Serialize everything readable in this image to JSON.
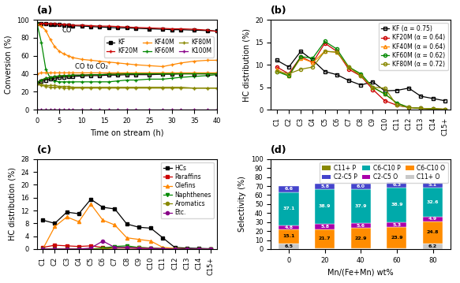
{
  "chart_data": [
    {
      "type": "line",
      "title": "(a)",
      "x_label": "Time on stream (h)",
      "y_label": "Conversion (%)",
      "x": [
        0,
        1,
        2,
        3,
        4,
        5,
        6,
        7,
        8,
        10,
        12,
        14,
        16,
        18,
        20,
        22,
        25,
        28,
        30,
        32,
        35,
        38,
        40
      ],
      "xlim": [
        0,
        40
      ],
      "xticks": [
        0,
        5,
        10,
        15,
        20,
        25,
        30,
        35,
        40
      ],
      "ylim": [
        0,
        100
      ],
      "yticks": [
        0,
        20,
        40,
        60,
        80,
        100
      ],
      "grid": false,
      "legend": "right",
      "annotations": [
        {
          "text": "CO",
          "x": 5.5,
          "y": 92
        },
        {
          "text": "CO to CO₂",
          "x": 8.5,
          "y": 44
        }
      ],
      "series": [
        {
          "name": "KF",
          "color": "#000000",
          "marker": "square",
          "values": [
            96,
            96,
            95.5,
            95,
            95,
            94.5,
            94,
            94,
            93.5,
            93,
            92.5,
            92,
            91.5,
            91,
            91,
            90.5,
            90,
            89.5,
            89,
            89,
            88.5,
            88,
            87.5
          ]
        },
        {
          "name": "KF20M",
          "color": "#cc0000",
          "marker": "plus",
          "values": [
            96,
            96,
            96,
            95.5,
            95.5,
            95,
            95,
            94.5,
            94,
            94,
            93.5,
            93,
            93,
            92.5,
            92,
            91.5,
            91,
            90.5,
            90,
            90,
            89.5,
            88.5,
            87
          ]
        },
        {
          "name": "KF40M",
          "color": "#ff8800",
          "marker": "plus",
          "values": [
            95,
            93,
            88,
            78,
            70,
            65,
            62,
            60,
            58,
            56,
            55,
            54,
            53,
            52,
            51,
            50,
            49,
            48,
            50,
            52,
            54,
            55,
            55
          ]
        },
        {
          "name": "KF60M",
          "color": "#008800",
          "marker": "plus",
          "values": [
            97,
            75,
            45,
            35,
            32,
            31,
            31,
            31,
            31,
            31,
            31,
            31,
            31,
            32,
            33,
            33,
            34,
            34,
            35,
            36,
            37,
            38,
            39
          ]
        },
        {
          "name": "KF80M",
          "color": "#888800",
          "marker": "plus",
          "values": [
            29,
            27,
            26,
            25,
            25,
            25,
            24,
            24,
            24,
            24,
            24,
            24,
            24,
            24,
            24,
            24,
            24,
            24,
            24,
            24,
            24,
            24,
            24
          ]
        },
        {
          "name": "K100M",
          "color": "#880088",
          "marker": "plus",
          "values": [
            0,
            0,
            0,
            0,
            0,
            0,
            0,
            0,
            0,
            0,
            0,
            0,
            0,
            0,
            0,
            0,
            0,
            0,
            0,
            0,
            0,
            0,
            0
          ]
        },
        {
          "name": "KF",
          "color": "#000000",
          "marker": "open_square",
          "values": [
            30,
            32,
            33,
            34,
            35,
            36,
            36.5,
            37,
            37,
            37.5,
            38,
            38,
            38.5,
            38.5,
            39,
            39,
            39,
            39.5,
            39.5,
            40,
            40,
            40,
            40
          ]
        },
        {
          "name": "KF20M",
          "color": "#cc0000",
          "marker": "plus",
          "values": [
            30,
            33,
            35,
            36,
            37,
            37.5,
            38,
            38,
            38.5,
            38.5,
            39,
            39,
            39.5,
            39.5,
            40,
            40,
            40,
            40,
            40,
            40,
            40,
            40,
            40
          ]
        },
        {
          "name": "KF40M",
          "color": "#ff8800",
          "marker": "plus",
          "values": [
            40,
            41,
            41,
            41,
            41,
            41,
            41,
            41,
            41,
            41,
            41,
            41,
            41,
            41,
            41,
            41,
            41,
            41,
            41,
            41,
            41,
            41,
            41
          ]
        },
        {
          "name": "KF60M",
          "color": "#008800",
          "marker": "plus",
          "values": [
            30,
            33,
            35,
            36,
            37,
            37.5,
            38,
            38,
            38.5,
            38.5,
            39,
            39,
            39.5,
            39.5,
            40,
            40,
            40,
            40,
            40,
            40,
            40,
            40,
            40
          ]
        },
        {
          "name": "KF80M",
          "color": "#888800",
          "marker": "plus",
          "values": [
            28,
            28,
            27,
            27,
            27,
            26,
            26,
            26,
            25,
            25,
            25,
            25,
            25,
            25,
            25,
            25,
            25,
            25,
            25,
            25,
            24,
            24,
            24
          ]
        }
      ]
    },
    {
      "type": "line",
      "title": "(b)",
      "y_label": "HC distribution (%)",
      "categories": [
        "C1",
        "C2",
        "C3",
        "C4",
        "C5",
        "C6",
        "C7",
        "C8",
        "C9",
        "C10",
        "C11",
        "C12",
        "C13",
        "C14",
        "C15+"
      ],
      "ylim": [
        0,
        20
      ],
      "yticks": [
        0,
        5,
        10,
        15,
        20
      ],
      "grid": false,
      "legend": "upper right",
      "series": [
        {
          "name": "KF (α = 0.75)",
          "color": "#000000",
          "marker": "open_square",
          "values": [
            11.0,
            9.5,
            13.0,
            11.0,
            8.5,
            7.8,
            6.5,
            5.5,
            6.2,
            4.2,
            4.3,
            4.8,
            3.0,
            2.5,
            2.0
          ]
        },
        {
          "name": "KF20M (α = 0.64)",
          "color": "#cc0000",
          "marker": "open_circle",
          "values": [
            9.5,
            8.0,
            11.8,
            10.5,
            14.8,
            13.0,
            9.0,
            7.5,
            4.5,
            2.0,
            1.0,
            0.5,
            0.3,
            0.2,
            0.1
          ]
        },
        {
          "name": "KF40M (α = 0.64)",
          "color": "#ff8800",
          "marker": "open_triangle",
          "values": [
            9.0,
            7.5,
            11.5,
            10.5,
            13.0,
            12.8,
            9.5,
            7.8,
            5.0,
            3.5,
            1.5,
            0.5,
            0.3,
            0.2,
            0.1
          ]
        },
        {
          "name": "KF60M (α = 0.62)",
          "color": "#008800",
          "marker": "open_circle",
          "values": [
            8.5,
            7.5,
            11.8,
            11.5,
            15.2,
            13.5,
            9.5,
            8.0,
            5.0,
            3.5,
            1.5,
            0.5,
            0.3,
            0.2,
            0.1
          ]
        },
        {
          "name": "KF80M (α = 0.72)",
          "color": "#888800",
          "marker": "open_circle",
          "values": [
            8.5,
            8.0,
            9.0,
            9.5,
            13.0,
            12.8,
            9.5,
            7.5,
            5.0,
            4.8,
            1.0,
            0.5,
            0.3,
            0.2,
            0.1
          ]
        }
      ]
    },
    {
      "type": "line",
      "title": "(c)",
      "y_label": "HC distribution (%)",
      "categories": [
        "C1",
        "C2",
        "C3",
        "C4",
        "C5",
        "C6",
        "C7",
        "C8",
        "C9",
        "C10",
        "C11",
        "C12",
        "C13",
        "C14",
        "C15+"
      ],
      "ylim": [
        0,
        28
      ],
      "yticks": [
        0,
        4,
        8,
        12,
        16,
        20,
        24,
        28
      ],
      "grid": false,
      "legend": "upper right",
      "series": [
        {
          "name": "HCs",
          "color": "#000000",
          "marker": "square",
          "values": [
            9.0,
            8.0,
            11.5,
            11.0,
            15.5,
            13.0,
            12.5,
            7.8,
            6.8,
            6.5,
            3.5,
            0.5,
            0.3,
            0.2,
            0.1
          ]
        },
        {
          "name": "Paraffins",
          "color": "#cc0000",
          "marker": "square",
          "values": [
            0.5,
            1.2,
            1.0,
            0.8,
            1.0,
            0.5,
            0.3,
            0.3,
            0.2,
            0.2,
            0.1,
            0.1,
            0.0,
            0.0,
            0.0
          ]
        },
        {
          "name": "Olefins",
          "color": "#ff8800",
          "marker": "triangle",
          "values": [
            0.0,
            7.0,
            10.0,
            8.5,
            14.0,
            9.0,
            7.5,
            3.5,
            3.0,
            2.5,
            0.5,
            0.2,
            0.1,
            0.0,
            0.0
          ]
        },
        {
          "name": "Naphthenes",
          "color": "#008800",
          "marker": "triangle_down",
          "values": [
            0.0,
            0.0,
            0.0,
            0.0,
            0.0,
            0.3,
            0.8,
            1.0,
            0.5,
            0.3,
            0.1,
            0.0,
            0.0,
            0.0,
            0.0
          ]
        },
        {
          "name": "Aromatics",
          "color": "#888800",
          "marker": "circle",
          "values": [
            0.0,
            0.0,
            0.0,
            0.0,
            0.0,
            0.0,
            0.3,
            0.5,
            0.5,
            0.3,
            0.1,
            0.0,
            0.0,
            0.0,
            0.0
          ]
        },
        {
          "name": "Etc.",
          "color": "#880088",
          "marker": "circle",
          "values": [
            0.0,
            0.0,
            0.0,
            0.0,
            0.3,
            2.5,
            0.5,
            0.5,
            0.3,
            0.2,
            0.1,
            0.0,
            0.0,
            0.0,
            0.0
          ]
        }
      ]
    },
    {
      "type": "bar",
      "stacked": true,
      "data_labels": true,
      "title": "(d)",
      "x_label": "Mn/(Fe+Mn) wt%",
      "y_label": "Selectivity (%)",
      "categories": [
        "0",
        "20",
        "40",
        "60",
        "80"
      ],
      "ylim": [
        0,
        100
      ],
      "yticks": [
        0,
        10,
        20,
        30,
        40,
        50,
        60,
        70,
        80,
        90,
        100
      ],
      "grid": false,
      "legend": "upper right",
      "series": [
        {
          "name": "C11+ O",
          "color": "#c8c8c8",
          "values": [
            6.5,
            0.5,
            0.5,
            0.5,
            6.2
          ],
          "value_labels": [
            "6.5",
            null,
            null,
            null,
            "6.2"
          ]
        },
        {
          "name": "C6-C10 O",
          "color": "#ff8c00",
          "values": [
            15.1,
            21.7,
            22.9,
            23.9,
            24.8
          ],
          "value_labels": [
            "15.1",
            "21.7",
            "22.9",
            "23.9",
            "24.8"
          ]
        },
        {
          "name": "C2-C5 O",
          "color": "#aa00aa",
          "values": [
            4.8,
            5.8,
            5.6,
            5.3,
            4.9
          ],
          "value_labels": [
            "4.8",
            "5.8",
            "5.6",
            "5.3",
            "4.9"
          ]
        },
        {
          "name": "C6-C10 P",
          "color": "#00aaaa",
          "values": [
            37.1,
            38.9,
            37.9,
            38.9,
            32.6
          ],
          "value_labels": [
            "37.1",
            "38.9",
            "37.9",
            "38.9",
            "32.6"
          ]
        },
        {
          "name": "C2-C5 P",
          "color": "#4444cc",
          "values": [
            6.6,
            5.8,
            6.0,
            6.3,
            5.1
          ],
          "value_labels": [
            "6.6",
            "5.8",
            "6.0",
            "6.3",
            "5.1"
          ]
        },
        {
          "name": "C11+ P",
          "color": "#888800",
          "values": [
            null,
            null,
            null,
            null,
            null
          ],
          "value_labels": [
            null,
            null,
            null,
            null,
            null
          ]
        }
      ]
    }
  ]
}
